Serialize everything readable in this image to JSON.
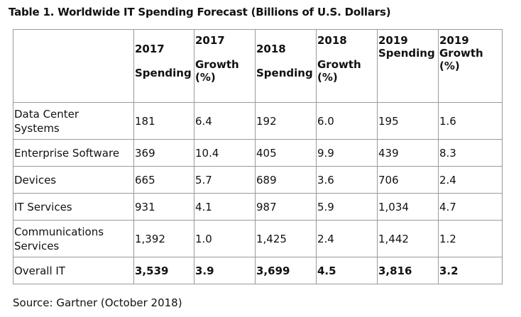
{
  "title": "Table 1. Worldwide IT Spending Forecast (Billions of U.S. Dollars)",
  "table": {
    "headers": {
      "blank": "",
      "h2017_year": "2017",
      "h2017_spending": "Spending",
      "h2017g_year": "2017",
      "h2017g_growth": "Growth",
      "h2017g_pct": "(%)",
      "h2018_year": "2018",
      "h2018_spending": "Spending",
      "h2018g_year": "2018",
      "h2018g_growth": "Growth",
      "h2018g_pct": "(%)",
      "h2019_year": "2019",
      "h2019_spending": "Spending",
      "h2019g_year": "2019",
      "h2019g_growth": "Growth",
      "h2019g_pct": "(%)"
    },
    "rows": [
      {
        "segment_line1": "Data Center",
        "segment_line2": "Systems",
        "s2017": "181",
        "g2017": "6.4",
        "s2018": "192",
        "g2018": "6.0",
        "s2019": "195",
        "g2019": "1.6"
      },
      {
        "segment": "Enterprise Software",
        "s2017": "369",
        "g2017": "10.4",
        "s2018": "405",
        "g2018": "9.9",
        "s2019": "439",
        "g2019": "8.3"
      },
      {
        "segment": "Devices",
        "s2017": "665",
        "g2017": "5.7",
        "s2018": "689",
        "g2018": "3.6",
        "s2019": "706",
        "g2019": "2.4"
      },
      {
        "segment": "IT Services",
        "s2017": "931",
        "g2017": "4.1",
        "s2018": "987",
        "g2018": "5.9",
        "s2019": "1,034",
        "g2019": "4.7"
      },
      {
        "segment_line1": "Communications",
        "segment_line2": "Services",
        "s2017": "1,392",
        "g2017": "1.0",
        "s2018": "1,425",
        "g2018": "2.4",
        "s2019": "1,442",
        "g2019": "1.2"
      },
      {
        "segment": "Overall IT",
        "s2017": "3,539",
        "g2017": "3.9",
        "s2018": "3,699",
        "g2018": "4.5",
        "s2019": "3,816",
        "g2019": "3.2"
      }
    ]
  },
  "source": "Source: Gartner (October 2018)"
}
